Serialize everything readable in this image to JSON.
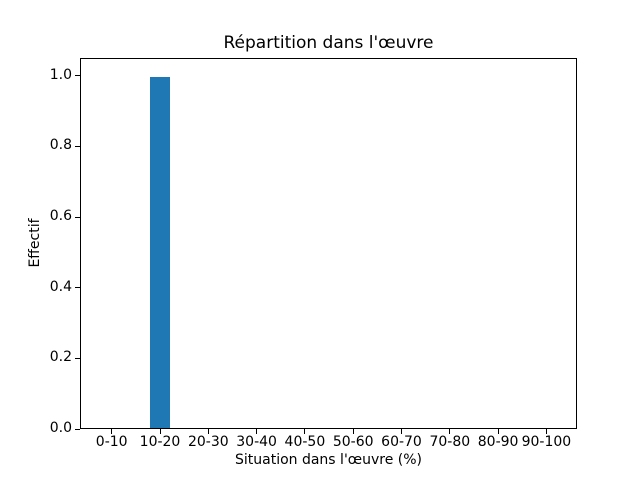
{
  "figure": {
    "background": "#ffffff"
  },
  "chart_data": {
    "type": "bar",
    "title": "Répartition dans l'œuvre",
    "xlabel": "Situation dans l'œuvre (%)",
    "ylabel": "Effectif",
    "categories": [
      "0-10",
      "10-20",
      "20-30",
      "30-40",
      "40-50",
      "50-60",
      "60-70",
      "70-80",
      "80-90",
      "90-100"
    ],
    "values": [
      0,
      1,
      0,
      0,
      0,
      0,
      0,
      0,
      0,
      0
    ],
    "yticks": [
      0.0,
      0.2,
      0.4,
      0.6,
      0.8,
      1.0
    ],
    "ytick_labels": [
      "0.0",
      "0.2",
      "0.4",
      "0.6",
      "0.8",
      "1.0"
    ],
    "ylim": [
      0,
      1.05
    ],
    "bar_color": "#1f77b4",
    "axis_color": "#000000",
    "grid": false,
    "legend": null
  }
}
